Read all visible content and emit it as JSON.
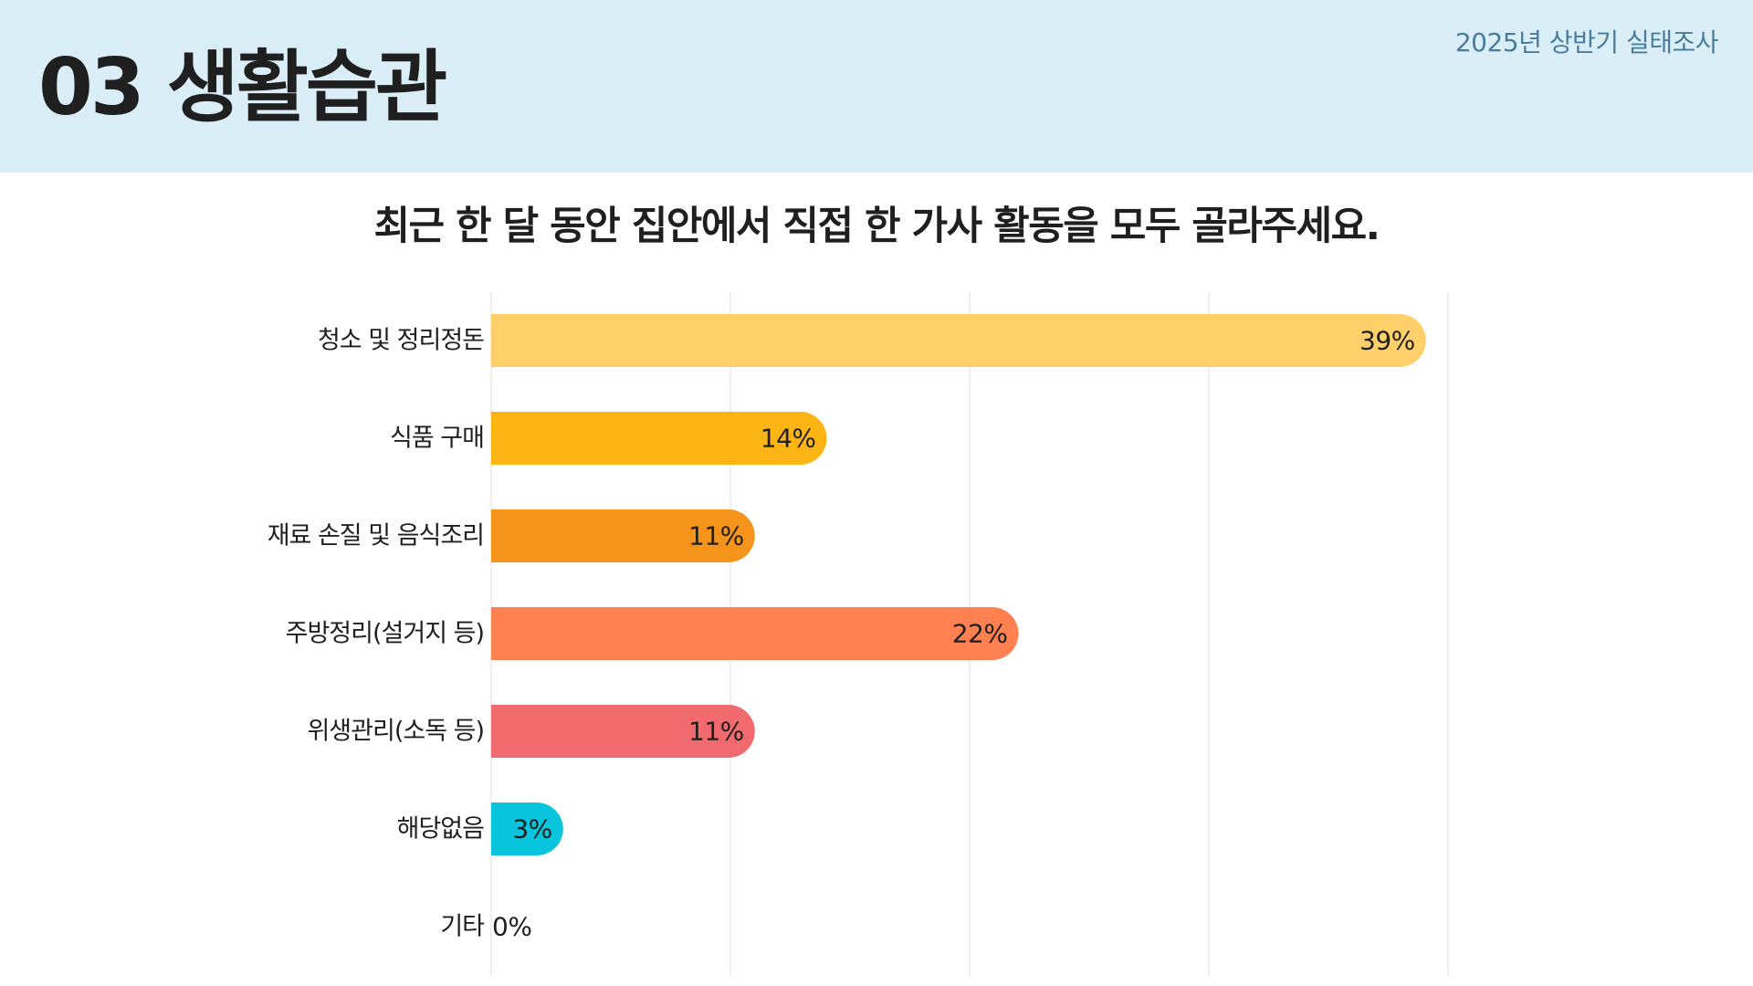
{
  "header": {
    "title": "03 생활습관",
    "survey_label": "2025년 상반기 실태조사"
  },
  "chart_data": {
    "type": "bar",
    "orientation": "horizontal",
    "title": "최근 한 달 동안 집안에서 직접 한 가사 활동을 모두 골라주세요.",
    "categories": [
      "청소 및 정리정돈",
      "식품 구매",
      "재료 손질 및 음식조리",
      "주방정리(설거지 등)",
      "위생관리(소독 등)",
      "해당없음",
      "기타"
    ],
    "values": [
      39,
      14,
      11,
      22,
      11,
      3,
      0
    ],
    "labels": [
      "39%",
      "14%",
      "11%",
      "22%",
      "11%",
      "3%",
      "0%"
    ],
    "colors": [
      "#ffd06a",
      "#fdb515",
      "#f5941a",
      "#ff8050",
      "#f06a6e",
      "#08c4dd",
      "#cccccc"
    ],
    "xlim": [
      0,
      40
    ],
    "grid": true,
    "grid_color": "#f0f0f0"
  }
}
